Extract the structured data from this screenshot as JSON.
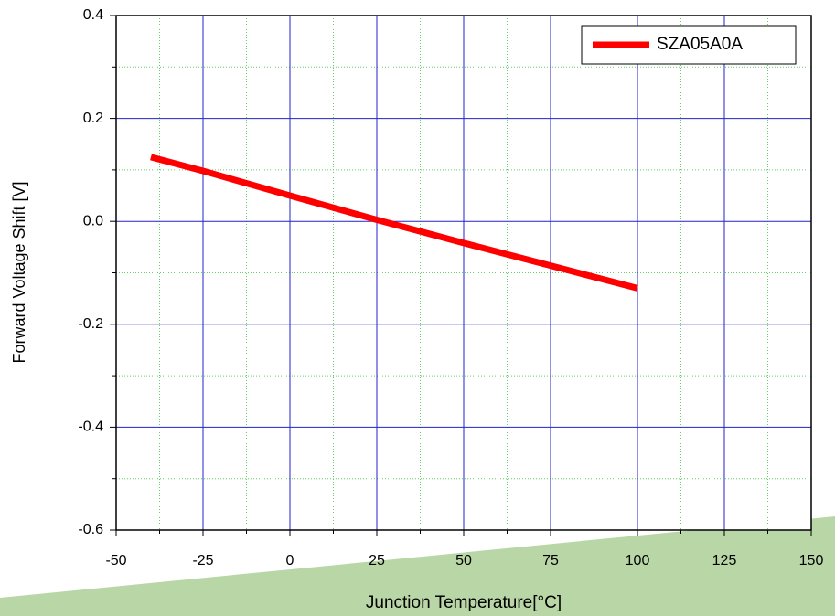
{
  "chart_data": {
    "type": "line",
    "xlabel": "Junction Temperature[°C]",
    "ylabel": "Forward Voltage Shift [V]",
    "x": [
      -40,
      -25,
      0,
      25,
      50,
      75,
      100
    ],
    "series": [
      {
        "name": "SZA05A0A",
        "color": "#ff0000",
        "values": [
          0.125,
          0.098,
          0.05,
          0.003,
          -0.042,
          -0.086,
          -0.13
        ]
      }
    ],
    "xlim": [
      -50,
      150
    ],
    "xticks": [
      -50,
      -25,
      0,
      25,
      50,
      75,
      100,
      125,
      150
    ],
    "ylim": [
      -0.6,
      0.4
    ],
    "yticks": [
      -0.6,
      -0.4,
      -0.2,
      {
        "value": 0,
        "label": "0.0"
      },
      0.2,
      0.4
    ],
    "grid": true,
    "legend": "upper right"
  }
}
